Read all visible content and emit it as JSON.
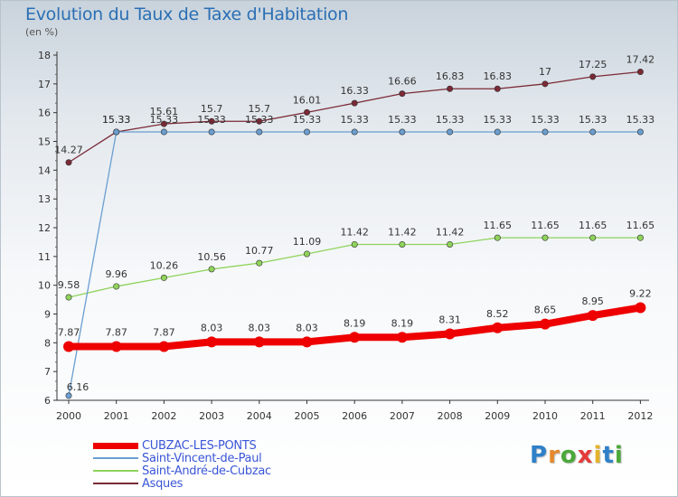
{
  "header": {
    "title": "Evolution du Taux de Taxe d'Habitation",
    "subtitle": "(en %)"
  },
  "logo": {
    "text": "Proxiti",
    "letters": [
      "P",
      "r",
      "o",
      "x",
      "i",
      "t",
      "i"
    ],
    "colors": [
      "#2f80c9",
      "#e5892a",
      "#4aa83a",
      "#e53a3a",
      "#e5b32a",
      "#2f80c9",
      "#4aa83a"
    ]
  },
  "chart_data": {
    "type": "line",
    "title": "Evolution du Taux de Taxe d'Habitation",
    "ylabel": "(en %)",
    "xlabel": "",
    "ylim": [
      6,
      18
    ],
    "yticks": [
      6,
      7,
      8,
      9,
      10,
      11,
      12,
      13,
      14,
      15,
      16,
      17,
      18
    ],
    "categories": [
      "2000",
      "2001",
      "2002",
      "2003",
      "2004",
      "2005",
      "2006",
      "2007",
      "2008",
      "2009",
      "2010",
      "2011",
      "2012"
    ],
    "grid": false,
    "legend_position": "bottom-left",
    "series": [
      {
        "name": "CUBZAC-LES-PONTS",
        "color": "#ee0000",
        "emphasis": "thick",
        "values": [
          7.87,
          7.87,
          7.87,
          8.03,
          8.03,
          8.03,
          8.19,
          8.19,
          8.31,
          8.52,
          8.65,
          8.95,
          9.22
        ],
        "labels": [
          "7.87",
          "7.87",
          "7.87",
          "8.03",
          "8.03",
          "8.03",
          "8.19",
          "8.19",
          "8.31",
          "8.52",
          "8.65",
          "8.95",
          "9.22"
        ]
      },
      {
        "name": "Saint-Vincent-de-Paul",
        "color": "#6a9ed0",
        "values": [
          6.16,
          15.33,
          15.33,
          15.33,
          15.33,
          15.33,
          15.33,
          15.33,
          15.33,
          15.33,
          15.33,
          15.33,
          15.33
        ],
        "labels": [
          "6.16",
          "15.33",
          "15.33",
          "15.33",
          "15.33",
          "15.33",
          "15.33",
          "15.33",
          "15.33",
          "15.33",
          "15.33",
          "15.33",
          "15.33"
        ]
      },
      {
        "name": "Saint-André-de-Cubzac",
        "color": "#8fd35a",
        "values": [
          9.58,
          9.96,
          10.26,
          10.56,
          10.77,
          11.09,
          11.42,
          11.42,
          11.42,
          11.65,
          11.65,
          11.65,
          11.65
        ],
        "labels": [
          "9.58",
          "9.96",
          "10.26",
          "10.56",
          "10.77",
          "11.09",
          "11.42",
          "11.42",
          "11.42",
          "11.65",
          "11.65",
          "11.65",
          "11.65"
        ]
      },
      {
        "name": "Asques",
        "color": "#7a2a36",
        "values": [
          14.27,
          15.33,
          15.61,
          15.7,
          15.7,
          16.01,
          16.33,
          16.66,
          16.83,
          16.83,
          17.0,
          17.25,
          17.42
        ],
        "labels": [
          "14.27",
          "15.33",
          "15.61",
          "15.7",
          "15.7",
          "16.01",
          "16.33",
          "16.66",
          "16.83",
          "16.83",
          "17",
          "17.25",
          "17.42"
        ]
      }
    ]
  }
}
